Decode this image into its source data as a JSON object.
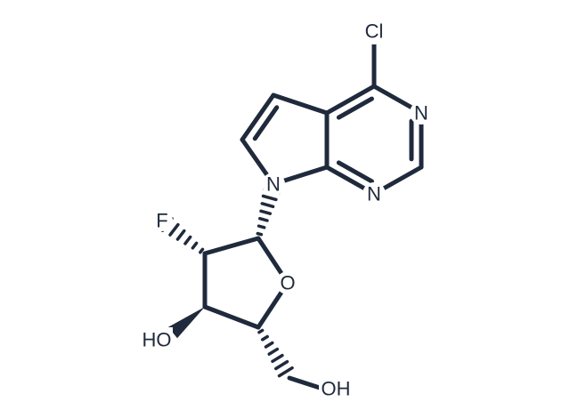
{
  "labels": [
    "Cl",
    "N",
    "N",
    "N",
    "F",
    "O",
    "HO",
    "OH"
  ]
}
